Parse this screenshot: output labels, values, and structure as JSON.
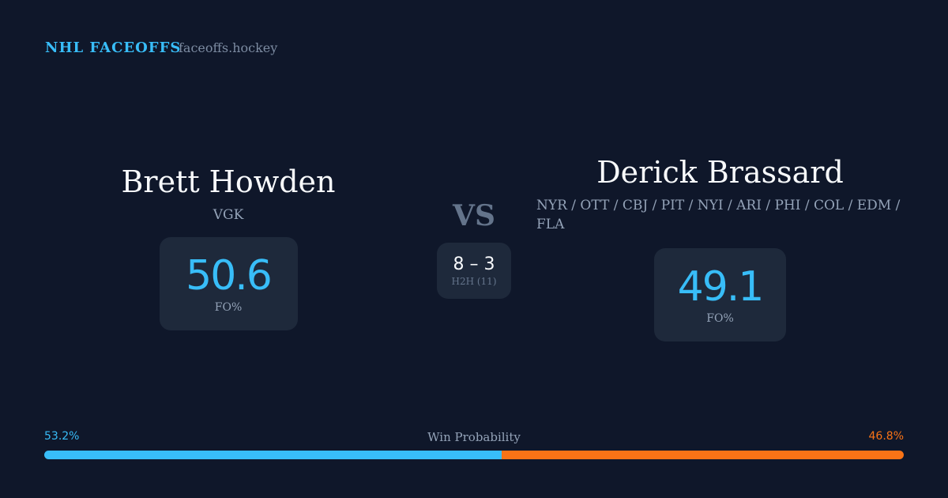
{
  "header": {
    "brand": "NHL FACEOFFS",
    "site": "faceoffs.hockey"
  },
  "player1": {
    "name": "Brett Howden",
    "teams": "VGK",
    "fo_pct": "50.6",
    "fo_label": "FO%"
  },
  "player2": {
    "name": "Derick Brassard",
    "teams": "NYR / OTT / CBJ / PIT / NYI / ARI / PHI / COL / EDM / FLA",
    "fo_pct": "49.1",
    "fo_label": "FO%"
  },
  "vs": "VS",
  "h2h": {
    "score": "8 – 3",
    "label": "H2H (11)"
  },
  "win_probability": {
    "label": "Win Probability",
    "p1_text": "53.2%",
    "p2_text": "46.8%",
    "p1": 53.2,
    "p2": 46.8,
    "p1_color": "#38bdf8",
    "p2_color": "#f97316"
  }
}
